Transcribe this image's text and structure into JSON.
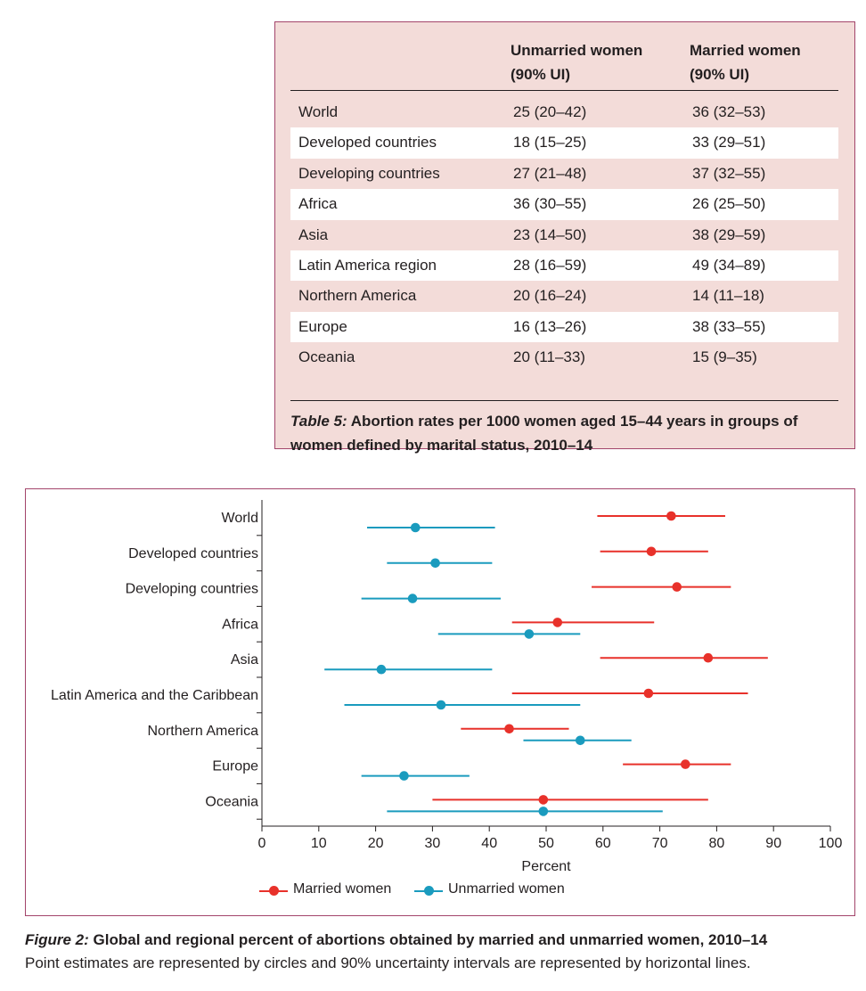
{
  "table": {
    "headers": {
      "unmarried_line1": "Unmarried women",
      "unmarried_line2": "(90% UI)",
      "married_line1": "Married women",
      "married_line2": "(90% UI)"
    },
    "rows": [
      {
        "region": "World",
        "unmarried": "25 (20–42)",
        "married": "36 (32–53)"
      },
      {
        "region": "Developed countries",
        "unmarried": "18 (15–25)",
        "married": "33 (29–51)"
      },
      {
        "region": "Developing countries",
        "unmarried": "27 (21–48)",
        "married": "37 (32–55)"
      },
      {
        "region": "Africa",
        "unmarried": "36 (30–55)",
        "married": "26 (25–50)"
      },
      {
        "region": "Asia",
        "unmarried": "23 (14–50)",
        "married": "38 (29–59)"
      },
      {
        "region": "Latin America region",
        "unmarried": "28 (16–59)",
        "married": "49 (34–89)"
      },
      {
        "region": "Northern America",
        "unmarried": "20 (16–24)",
        "married": "14 (11–18)"
      },
      {
        "region": "Europe",
        "unmarried": "16 (13–26)",
        "married": "38 (33–55)"
      },
      {
        "region": "Oceania",
        "unmarried": "20 (11–33)",
        "married": "15 (9–35)"
      }
    ],
    "caption_label": "Table 5:",
    "caption_text": " Abortion rates per 1000 women aged 15–44 years in groups of women defined by marital status, 2010–14"
  },
  "figure": {
    "caption_label": "Figure 2:",
    "caption_title": " Global and regional percent of abortions obtained by married and unmarried women, 2010–14",
    "caption_note": "Point estimates are represented by circles and 90% uncertainty intervals are represented by horizontal lines."
  },
  "chart_data": {
    "type": "scatter",
    "subtype": "dot-and-interval",
    "xlabel": "Percent",
    "xlim": [
      0,
      100
    ],
    "xticks": [
      0,
      10,
      20,
      30,
      40,
      50,
      60,
      70,
      80,
      90,
      100
    ],
    "categories": [
      "World",
      "Developed countries",
      "Developing countries",
      "Africa",
      "Asia",
      "Latin America and the Caribbean",
      "Northern America",
      "Europe",
      "Oceania"
    ],
    "legend_position": "bottom",
    "series": [
      {
        "name": "Married women",
        "color": "#e8312a",
        "point": [
          72,
          68.5,
          73,
          52,
          78.5,
          68,
          43.5,
          74.5,
          49.5
        ],
        "lower": [
          59,
          59.5,
          58,
          44,
          59.5,
          44,
          35,
          63.5,
          30
        ],
        "upper": [
          81.5,
          78.5,
          82.5,
          69,
          89,
          85.5,
          54,
          82.5,
          78.5
        ]
      },
      {
        "name": "Unmarried women",
        "color": "#1a9bbe",
        "point": [
          27,
          30.5,
          26.5,
          47,
          21,
          31.5,
          56,
          25,
          49.5
        ],
        "lower": [
          18.5,
          22,
          17.5,
          31,
          11,
          14.5,
          46,
          17.5,
          22
        ],
        "upper": [
          41,
          40.5,
          42,
          56,
          40.5,
          56,
          65,
          36.5,
          70.5
        ]
      }
    ]
  }
}
